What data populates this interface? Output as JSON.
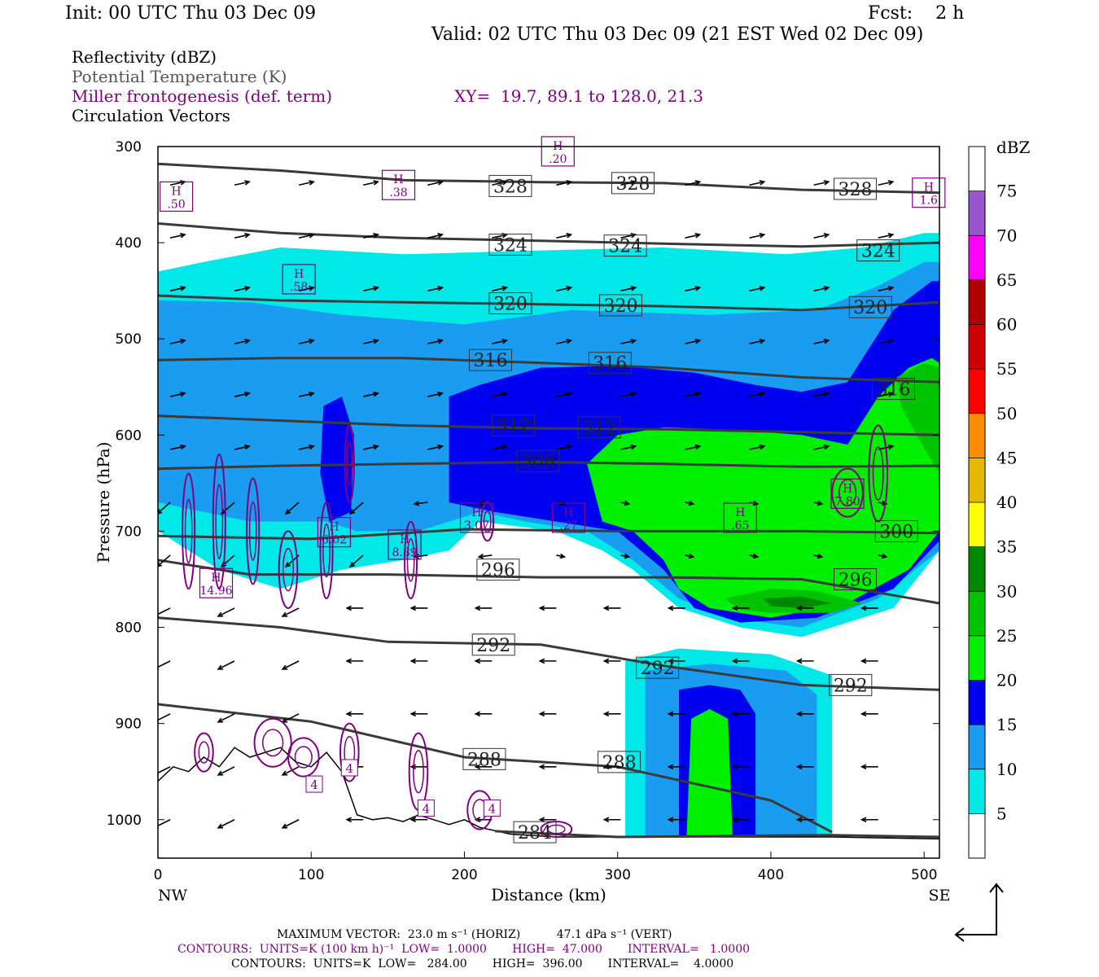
{
  "header": {
    "init": "Init: 00 UTC Thu 03 Dec 09",
    "fcst": "Fcst:    2 h",
    "valid": "Valid: 02 UTC Thu 03 Dec 09 (21 EST Wed 02 Dec 09)"
  },
  "legend_lines": [
    {
      "text": "Reflectivity (dBZ)",
      "color": "#000000"
    },
    {
      "text": "Potential Temperature (K)",
      "color": "#555555"
    },
    {
      "text": "Miller frontogenesis (def. term)",
      "color": "#800080"
    },
    {
      "text": "Circulation Vectors",
      "color": "#000000"
    }
  ],
  "xy_note": "XY=  19.7, 89.1 to 128.0, 21.3",
  "footer": {
    "max_vector": "MAXIMUM VECTOR:  23.0 m s⁻¹ (HORIZ)          47.1 dPa s⁻¹ (VERT)",
    "contours_fronto": "CONTOURS:  UNITS=K (100 km h)⁻¹  LOW=  1.0000       HIGH=  47.000       INTERVAL=   1.0000",
    "contours_theta": "CONTOURS:  UNITS=K  LOW=   284.00       HIGH=  396.00       INTERVAL=    4.0000"
  },
  "chart_data": {
    "type": "cross-section",
    "xlabel": "Distance (km)",
    "ylabel": "Pressure (hPa)",
    "xlim": [
      0,
      510
    ],
    "ylim": [
      1040,
      300
    ],
    "x_ticks": [
      "0",
      "100",
      "200",
      "300",
      "400",
      "500"
    ],
    "y_ticks": [
      "300",
      "400",
      "500",
      "600",
      "700",
      "800",
      "900",
      "1000"
    ],
    "x_end_labels": [
      "NW",
      "SE"
    ],
    "colorbar": {
      "title": "dBZ",
      "levels": [
        "5",
        "10",
        "15",
        "20",
        "25",
        "30",
        "35",
        "40",
        "45",
        "50",
        "55",
        "60",
        "65",
        "70",
        "75"
      ],
      "colors": [
        "#ffffff",
        "#00e8e8",
        "#1a9cf0",
        "#0000f0",
        "#00f000",
        "#00c400",
        "#008800",
        "#ffff00",
        "#e6b800",
        "#ff8c00",
        "#ff0000",
        "#d00000",
        "#b00000",
        "#ff00ff",
        "#9955cc"
      ]
    },
    "theta_isentropes": [
      {
        "label": "328",
        "points": [
          [
            0,
            318
          ],
          [
            80,
            325
          ],
          [
            160,
            335
          ],
          [
            250,
            337
          ],
          [
            330,
            338
          ],
          [
            420,
            345
          ],
          [
            510,
            348
          ]
        ],
        "label_at": [
          [
            230,
            341
          ],
          [
            310,
            338
          ],
          [
            455,
            344
          ]
        ]
      },
      {
        "label": "324",
        "points": [
          [
            0,
            380
          ],
          [
            80,
            390
          ],
          [
            160,
            395
          ],
          [
            250,
            398
          ],
          [
            330,
            401
          ],
          [
            420,
            404
          ],
          [
            510,
            400
          ]
        ],
        "label_at": [
          [
            230,
            402
          ],
          [
            305,
            403
          ],
          [
            470,
            408
          ]
        ]
      },
      {
        "label": "320",
        "points": [
          [
            0,
            455
          ],
          [
            80,
            460
          ],
          [
            160,
            462
          ],
          [
            250,
            464
          ],
          [
            330,
            466
          ],
          [
            420,
            470
          ],
          [
            510,
            462
          ]
        ],
        "label_at": [
          [
            230,
            463
          ],
          [
            302,
            465
          ],
          [
            465,
            467
          ]
        ]
      },
      {
        "label": "316",
        "points": [
          [
            0,
            522
          ],
          [
            80,
            520
          ],
          [
            160,
            520
          ],
          [
            250,
            525
          ],
          [
            330,
            530
          ],
          [
            420,
            540
          ],
          [
            510,
            545
          ]
        ],
        "label_at": [
          [
            217,
            522
          ],
          [
            295,
            525
          ],
          [
            480,
            552
          ]
        ]
      },
      {
        "label": "312",
        "points": [
          [
            0,
            580
          ],
          [
            80,
            585
          ],
          [
            160,
            590
          ],
          [
            250,
            593
          ],
          [
            330,
            594
          ],
          [
            420,
            597
          ],
          [
            510,
            600
          ]
        ],
        "label_at": [
          [
            232,
            590
          ],
          [
            288,
            592
          ]
        ]
      },
      {
        "label": "308",
        "points": [
          [
            0,
            635
          ],
          [
            80,
            632
          ],
          [
            160,
            630
          ],
          [
            250,
            628
          ],
          [
            330,
            630
          ],
          [
            420,
            633
          ],
          [
            510,
            632
          ]
        ],
        "label_at": [
          [
            248,
            627
          ]
        ]
      },
      {
        "label": "300",
        "points": [
          [
            0,
            705
          ],
          [
            100,
            708
          ],
          [
            200,
            698
          ],
          [
            300,
            700
          ],
          [
            420,
            700
          ],
          [
            510,
            702
          ]
        ],
        "label_at": [
          [
            482,
            700
          ]
        ]
      },
      {
        "label": "296",
        "points": [
          [
            0,
            730
          ],
          [
            60,
            745
          ],
          [
            150,
            745
          ],
          [
            250,
            748
          ],
          [
            330,
            748
          ],
          [
            420,
            750
          ],
          [
            510,
            775
          ]
        ],
        "label_at": [
          [
            222,
            740
          ],
          [
            455,
            750
          ]
        ]
      },
      {
        "label": "292",
        "points": [
          [
            0,
            790
          ],
          [
            80,
            800
          ],
          [
            150,
            815
          ],
          [
            250,
            818
          ],
          [
            330,
            840
          ],
          [
            420,
            860
          ],
          [
            510,
            865
          ]
        ],
        "label_at": [
          [
            219,
            818
          ],
          [
            326,
            842
          ],
          [
            452,
            860
          ]
        ]
      },
      {
        "label": "288",
        "points": [
          [
            0,
            880
          ],
          [
            100,
            898
          ],
          [
            200,
            935
          ],
          [
            300,
            945
          ],
          [
            400,
            980
          ],
          [
            440,
            1013
          ]
        ],
        "label_at": [
          [
            213,
            937
          ],
          [
            301,
            940
          ]
        ]
      },
      {
        "label": "284",
        "points": [
          [
            220,
            1012
          ],
          [
            300,
            1018
          ],
          [
            440,
            1016
          ],
          [
            510,
            1018
          ]
        ],
        "label_at": [
          [
            246,
            1013
          ]
        ]
      }
    ],
    "fronto_maxima": [
      {
        "label": "H",
        "value": ".50",
        "x": 12,
        "p": 352
      },
      {
        "label": "H",
        "value": ".38",
        "x": 157,
        "p": 340
      },
      {
        "label": "H",
        "value": ".20",
        "x": 261,
        "p": 305
      },
      {
        "label": "H",
        "value": "1.6",
        "x": 503,
        "p": 348
      },
      {
        "label": "H",
        "value": ".58",
        "x": 92,
        "p": 438
      },
      {
        "label": "H",
        "value": "3.07",
        "x": 208,
        "p": 686
      },
      {
        "label": "H",
        "value": ".27",
        "x": 268,
        "p": 686
      },
      {
        "label": "H",
        "value": ".65",
        "x": 380,
        "p": 686
      },
      {
        "label": "H",
        "value": "7.80",
        "x": 450,
        "p": 661
      },
      {
        "label": "H",
        "value": "8.89",
        "x": 161,
        "p": 714
      },
      {
        "label": "H",
        "value": "6.02",
        "x": 115,
        "p": 701
      },
      {
        "label": "H",
        "value": "14.96",
        "x": 38,
        "p": 754
      }
    ],
    "fronto_small_labels": [
      {
        "value": "4",
        "x": 102,
        "p": 963
      },
      {
        "value": "4",
        "x": 125,
        "p": 946
      },
      {
        "value": "4",
        "x": 175,
        "p": 988
      },
      {
        "value": "4",
        "x": 218,
        "p": 988
      }
    ]
  }
}
